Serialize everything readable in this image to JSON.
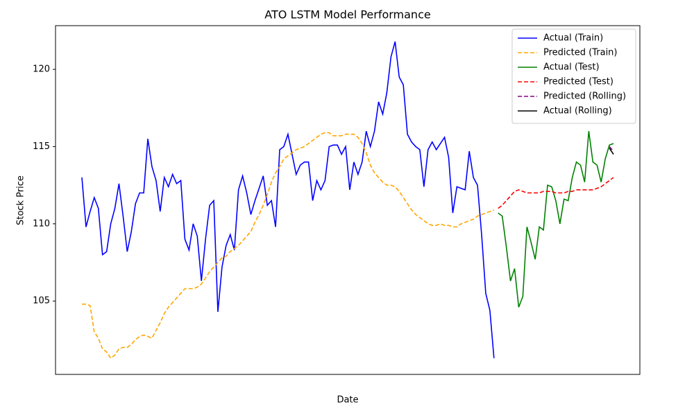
{
  "chart_data": {
    "type": "line",
    "title": "ATO LSTM Model Performance",
    "x_label": "Date",
    "y_label": "Stock Price",
    "ylim": [
      100.25,
      122.83
    ],
    "yticks": [
      105,
      110,
      115,
      120
    ],
    "grid": false,
    "legend": "upper right",
    "series": [
      {
        "name": "Actual (Train)",
        "color": "#0000ff",
        "linestyle": "solid",
        "values": [
          113.0,
          109.8,
          110.8,
          111.7,
          111.0,
          108.0,
          108.2,
          110.0,
          111.0,
          112.6,
          110.5,
          108.2,
          109.5,
          111.3,
          112.0,
          112.0,
          115.5,
          113.7,
          112.8,
          110.8,
          113.0,
          112.4,
          113.2,
          112.6,
          112.8,
          109.0,
          108.3,
          110.0,
          109.2,
          106.3,
          109.0,
          111.2,
          111.5,
          104.3,
          107.2,
          108.6,
          109.3,
          108.3,
          112.2,
          113.1,
          112.0,
          110.6,
          111.5,
          112.3,
          113.1,
          111.2,
          111.5,
          109.8,
          114.8,
          115.0,
          115.8,
          114.5,
          113.2,
          113.8,
          114.0,
          114.0,
          111.5,
          112.8,
          112.2,
          112.8,
          115.0,
          115.1,
          115.1,
          114.5,
          115.0,
          112.2,
          114.0,
          113.2,
          114.0,
          116.0,
          115.0,
          116.0,
          117.9,
          117.1,
          118.5,
          120.8,
          121.8,
          119.5,
          119.0,
          115.8,
          115.3,
          115.0,
          114.8,
          112.4,
          114.8,
          115.3,
          114.8,
          115.2,
          115.6,
          114.3,
          110.7,
          112.4,
          112.3,
          112.2,
          114.7,
          113.0,
          112.5,
          109.3,
          105.5,
          104.4,
          101.3,
          null,
          null,
          null,
          null,
          null,
          null,
          null,
          null,
          null,
          null,
          null,
          null,
          null,
          null,
          null,
          null,
          null,
          null,
          null,
          null,
          null,
          null,
          null,
          null,
          null,
          null,
          null,
          null,
          null
        ]
      },
      {
        "name": "Predicted (Train)",
        "color": "#ffa500",
        "linestyle": "dashed",
        "values": [
          104.8,
          104.8,
          104.7,
          103.0,
          102.6,
          101.9,
          101.7,
          101.3,
          101.5,
          101.9,
          102.0,
          102.0,
          102.2,
          102.5,
          102.7,
          102.8,
          102.7,
          102.6,
          103.1,
          103.6,
          104.2,
          104.6,
          104.9,
          105.2,
          105.5,
          105.8,
          105.8,
          105.8,
          105.9,
          106.1,
          106.5,
          106.9,
          107.2,
          107.5,
          107.8,
          107.9,
          108.2,
          108.4,
          108.6,
          108.9,
          109.2,
          109.5,
          110.1,
          110.6,
          111.2,
          111.9,
          112.7,
          113.3,
          113.7,
          114.2,
          114.4,
          114.6,
          114.8,
          114.9,
          115.0,
          115.2,
          115.4,
          115.6,
          115.8,
          115.9,
          115.9,
          115.7,
          115.7,
          115.7,
          115.8,
          115.8,
          115.8,
          115.6,
          115.2,
          114.6,
          113.8,
          113.3,
          113.0,
          112.7,
          112.5,
          112.5,
          112.4,
          112.1,
          111.7,
          111.3,
          110.9,
          110.6,
          110.4,
          110.2,
          110.0,
          109.9,
          109.9,
          110.0,
          109.9,
          109.9,
          109.8,
          109.8,
          110.0,
          110.1,
          110.2,
          110.3,
          110.5,
          110.6,
          110.7,
          110.8,
          110.9,
          null,
          null,
          null,
          null,
          null,
          null,
          null,
          null,
          null,
          null,
          null,
          null,
          null,
          null,
          null,
          null,
          null,
          null,
          null,
          null,
          null,
          null,
          null,
          null,
          null,
          null,
          null,
          null,
          null
        ]
      },
      {
        "name": "Actual (Test)",
        "color": "#008000",
        "linestyle": "solid",
        "values": [
          null,
          null,
          null,
          null,
          null,
          null,
          null,
          null,
          null,
          null,
          null,
          null,
          null,
          null,
          null,
          null,
          null,
          null,
          null,
          null,
          null,
          null,
          null,
          null,
          null,
          null,
          null,
          null,
          null,
          null,
          null,
          null,
          null,
          null,
          null,
          null,
          null,
          null,
          null,
          null,
          null,
          null,
          null,
          null,
          null,
          null,
          null,
          null,
          null,
          null,
          null,
          null,
          null,
          null,
          null,
          null,
          null,
          null,
          null,
          null,
          null,
          null,
          null,
          null,
          null,
          null,
          null,
          null,
          null,
          null,
          null,
          null,
          null,
          null,
          null,
          null,
          null,
          null,
          null,
          null,
          null,
          null,
          null,
          null,
          null,
          null,
          null,
          null,
          null,
          null,
          null,
          null,
          null,
          null,
          null,
          null,
          null,
          null,
          null,
          null,
          null,
          110.7,
          110.5,
          108.5,
          106.3,
          107.1,
          104.6,
          105.3,
          109.8,
          108.8,
          107.7,
          109.8,
          109.6,
          112.5,
          112.4,
          111.5,
          110.0,
          111.6,
          111.5,
          113.0,
          114.0,
          113.8,
          112.7,
          116.0,
          114.0,
          113.8,
          112.7,
          114.2,
          115.1,
          115.2
        ]
      },
      {
        "name": "Predicted (Test)",
        "color": "#ff0000",
        "linestyle": "dashed",
        "values": [
          null,
          null,
          null,
          null,
          null,
          null,
          null,
          null,
          null,
          null,
          null,
          null,
          null,
          null,
          null,
          null,
          null,
          null,
          null,
          null,
          null,
          null,
          null,
          null,
          null,
          null,
          null,
          null,
          null,
          null,
          null,
          null,
          null,
          null,
          null,
          null,
          null,
          null,
          null,
          null,
          null,
          null,
          null,
          null,
          null,
          null,
          null,
          null,
          null,
          null,
          null,
          null,
          null,
          null,
          null,
          null,
          null,
          null,
          null,
          null,
          null,
          null,
          null,
          null,
          null,
          null,
          null,
          null,
          null,
          null,
          null,
          null,
          null,
          null,
          null,
          null,
          null,
          null,
          null,
          null,
          null,
          null,
          null,
          null,
          null,
          null,
          null,
          null,
          null,
          null,
          null,
          null,
          null,
          null,
          null,
          null,
          null,
          null,
          null,
          null,
          null,
          111.0,
          111.2,
          111.5,
          111.8,
          112.1,
          112.2,
          112.1,
          112.0,
          112.0,
          112.0,
          112.0,
          112.1,
          112.1,
          112.1,
          112.0,
          112.0,
          112.0,
          112.1,
          112.1,
          112.2,
          112.2,
          112.2,
          112.2,
          112.2,
          112.3,
          112.4,
          112.6,
          112.8,
          113.0
        ]
      },
      {
        "name": "Predicted (Rolling)",
        "color": "#800080",
        "linestyle": "dashed",
        "values": [
          null,
          null,
          null,
          null,
          null,
          null,
          null,
          null,
          null,
          null,
          null,
          null,
          null,
          null,
          null,
          null,
          null,
          null,
          null,
          null,
          null,
          null,
          null,
          null,
          null,
          null,
          null,
          null,
          null,
          null,
          null,
          null,
          null,
          null,
          null,
          null,
          null,
          null,
          null,
          null,
          null,
          null,
          null,
          null,
          null,
          null,
          null,
          null,
          null,
          null,
          null,
          null,
          null,
          null,
          null,
          null,
          null,
          null,
          null,
          null,
          null,
          null,
          null,
          null,
          null,
          null,
          null,
          null,
          null,
          null,
          null,
          null,
          null,
          null,
          null,
          null,
          null,
          null,
          null,
          null,
          null,
          null,
          null,
          null,
          null,
          null,
          null,
          null,
          null,
          null,
          null,
          null,
          null,
          null,
          null,
          null,
          null,
          null,
          null,
          null,
          null,
          null,
          null,
          null,
          null,
          null,
          null,
          null,
          null,
          null,
          null,
          null,
          null,
          null,
          null,
          null,
          null,
          null,
          null,
          null,
          null,
          null,
          null,
          null,
          null,
          null,
          null,
          null,
          115.0,
          114.7
        ]
      },
      {
        "name": "Actual (Rolling)",
        "color": "#000000",
        "linestyle": "solid",
        "values": [
          null,
          null,
          null,
          null,
          null,
          null,
          null,
          null,
          null,
          null,
          null,
          null,
          null,
          null,
          null,
          null,
          null,
          null,
          null,
          null,
          null,
          null,
          null,
          null,
          null,
          null,
          null,
          null,
          null,
          null,
          null,
          null,
          null,
          null,
          null,
          null,
          null,
          null,
          null,
          null,
          null,
          null,
          null,
          null,
          null,
          null,
          null,
          null,
          null,
          null,
          null,
          null,
          null,
          null,
          null,
          null,
          null,
          null,
          null,
          null,
          null,
          null,
          null,
          null,
          null,
          null,
          null,
          null,
          null,
          null,
          null,
          null,
          null,
          null,
          null,
          null,
          null,
          null,
          null,
          null,
          null,
          null,
          null,
          null,
          null,
          null,
          null,
          null,
          null,
          null,
          null,
          null,
          null,
          null,
          null,
          null,
          null,
          null,
          null,
          null,
          null,
          null,
          null,
          null,
          null,
          null,
          null,
          null,
          null,
          null,
          null,
          null,
          null,
          null,
          null,
          null,
          null,
          null,
          null,
          null,
          null,
          null,
          null,
          null,
          null,
          null,
          null,
          null,
          114.9,
          114.5
        ]
      }
    ]
  }
}
